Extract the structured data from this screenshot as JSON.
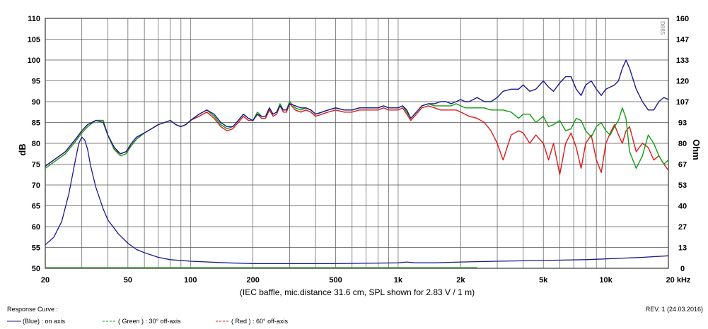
{
  "chart_data": {
    "type": "line",
    "title": "",
    "xlabel": "(IEC baffle, mic.distance 31.6 cm, SPL shown for 2.83 V / 1 m)",
    "ylabel": "dB",
    "ylabel_right": "Ohm",
    "x_scale": "log",
    "xlim": [
      20,
      20000
    ],
    "ylim": [
      50,
      110
    ],
    "ylim_right": [
      0,
      160
    ],
    "x_tick_labels": [
      "20",
      "50",
      "100",
      "200",
      "500",
      "1k",
      "2k",
      "5k",
      "10k",
      "20 kHz"
    ],
    "x_tick_values": [
      20,
      50,
      100,
      200,
      500,
      1000,
      2000,
      5000,
      10000,
      20000
    ],
    "y_tick_labels": [
      "50",
      "55",
      "60",
      "65",
      "70",
      "75",
      "80",
      "85",
      "90",
      "95",
      "100",
      "105",
      "110"
    ],
    "y_right_tick_labels": [
      "0",
      "13",
      "27",
      "40",
      "53",
      "67",
      "80",
      "93",
      "107",
      "120",
      "133",
      "147",
      "160"
    ],
    "grid": true,
    "legend_title": "Response Curve :",
    "legend_position": "bottom-left",
    "revision": "REV. 1 (24.03.2016)",
    "watermark": "D885",
    "series": [
      {
        "name": "(Blue) : on axis",
        "color": "#1a1a8c",
        "x": [
          20,
          22,
          25,
          28,
          30,
          32,
          35,
          38,
          40,
          43,
          46,
          49,
          52,
          55,
          60,
          65,
          70,
          75,
          80,
          85,
          90,
          95,
          100,
          110,
          120,
          130,
          140,
          150,
          160,
          170,
          180,
          190,
          200,
          210,
          220,
          230,
          240,
          250,
          260,
          270,
          280,
          290,
          300,
          320,
          340,
          360,
          380,
          400,
          430,
          460,
          500,
          550,
          600,
          650,
          700,
          750,
          800,
          850,
          900,
          950,
          1000,
          1050,
          1100,
          1150,
          1200,
          1300,
          1400,
          1500,
          1600,
          1700,
          1800,
          1900,
          2000,
          2100,
          2200,
          2400,
          2600,
          2800,
          3000,
          3200,
          3500,
          3800,
          4000,
          4300,
          4600,
          5000,
          5300,
          5600,
          6000,
          6400,
          6800,
          7200,
          7600,
          8000,
          8500,
          9000,
          9500,
          10000,
          10500,
          11000,
          11500,
          12000,
          12500,
          13000,
          14000,
          15000,
          16000,
          17000,
          18000,
          19000,
          20000
        ],
        "values": [
          74.5,
          76,
          78,
          81,
          83,
          84.5,
          85.5,
          85,
          82,
          79,
          77.5,
          78,
          80,
          81.5,
          82.5,
          83.5,
          84.5,
          85,
          85.5,
          84.5,
          84,
          84.5,
          85.5,
          87,
          88,
          87,
          85,
          84,
          84,
          85.5,
          87,
          86,
          85.5,
          87,
          86.5,
          86.5,
          88.5,
          87,
          87.5,
          89,
          88,
          88,
          89.5,
          89,
          88.5,
          88.5,
          88,
          87,
          87.5,
          88,
          88.5,
          88,
          88,
          88.5,
          88.5,
          88.5,
          88.5,
          89,
          88.5,
          88.5,
          88.5,
          89,
          88,
          86,
          87,
          89,
          89.5,
          89.5,
          90,
          90,
          89.5,
          90,
          90.5,
          90,
          90,
          91,
          90,
          90,
          91,
          92.5,
          93,
          93,
          94,
          92.5,
          93,
          95,
          93.5,
          92.5,
          94.5,
          96,
          96,
          93,
          91.5,
          94,
          95,
          93,
          91.5,
          93,
          93.5,
          94,
          95,
          98,
          100,
          98,
          93,
          90,
          88,
          88,
          90,
          91,
          90.5
        ],
        "impedance_x": [
          20,
          22,
          24,
          26,
          28,
          29,
          30,
          31,
          32,
          33,
          35,
          38,
          40,
          45,
          50,
          55,
          60,
          70,
          80,
          100,
          150,
          200,
          300,
          500,
          1000,
          1100,
          1200,
          1500,
          2000,
          3000,
          5000,
          8000,
          10000,
          15000,
          20000
        ],
        "impedance_ohm": [
          15,
          20,
          30,
          48,
          70,
          80,
          84,
          82,
          76,
          66,
          52,
          38,
          31,
          22,
          16,
          12,
          10,
          7,
          5.5,
          4.5,
          3.5,
          3,
          3,
          3,
          3.5,
          4,
          3.5,
          3.5,
          4,
          4.5,
          5,
          5.5,
          6,
          7,
          8
        ]
      },
      {
        "name": "( Green ) : 30° off-axis",
        "color": "#129c12",
        "x": [
          20,
          22,
          25,
          28,
          30,
          32,
          35,
          38,
          40,
          43,
          46,
          49,
          52,
          55,
          60,
          65,
          70,
          75,
          80,
          85,
          90,
          95,
          100,
          110,
          120,
          130,
          140,
          150,
          160,
          170,
          180,
          190,
          200,
          210,
          220,
          230,
          240,
          250,
          260,
          270,
          280,
          290,
          300,
          320,
          340,
          360,
          380,
          400,
          430,
          460,
          500,
          550,
          600,
          650,
          700,
          750,
          800,
          850,
          900,
          950,
          1000,
          1050,
          1100,
          1150,
          1200,
          1300,
          1400,
          1500,
          1600,
          1700,
          1800,
          1900,
          2000,
          2100,
          2200,
          2400,
          2600,
          2800,
          3000,
          3200,
          3500,
          3800,
          4000,
          4300,
          4600,
          5000,
          5300,
          5600,
          6000,
          6400,
          6800,
          7200,
          7600,
          8000,
          8500,
          9000,
          9500,
          10000,
          10500,
          11000,
          11500,
          12000,
          12500,
          13000,
          14000,
          15000,
          16000,
          17000,
          18000,
          19000,
          20000
        ],
        "values": [
          74,
          75.5,
          77.5,
          80.5,
          82.5,
          84,
          85.5,
          85.5,
          82,
          78.5,
          77,
          77.5,
          79.5,
          81,
          82.5,
          83.5,
          84.5,
          85,
          85.5,
          84.5,
          84,
          84.5,
          85.5,
          87,
          88,
          86.5,
          84.5,
          83.5,
          84,
          85.5,
          87,
          86,
          85.5,
          87.5,
          86.5,
          86.5,
          88.5,
          87,
          87.5,
          89.5,
          88,
          88,
          90,
          88.5,
          88,
          88.5,
          88,
          87,
          87.5,
          88,
          88.5,
          88,
          88,
          88.5,
          88.5,
          88.5,
          88.5,
          89,
          88.5,
          88.5,
          88.5,
          89,
          87.5,
          86,
          87,
          89,
          89.5,
          89,
          89,
          89,
          89,
          89.5,
          89,
          88.5,
          88.5,
          88.5,
          88.5,
          88,
          88,
          88,
          87.5,
          86,
          87,
          87,
          85,
          86.5,
          84,
          84.5,
          85.5,
          83,
          83.5,
          86,
          85.5,
          83,
          81.5,
          84,
          85,
          83,
          82,
          84,
          85.5,
          88.5,
          86,
          78,
          74,
          77,
          82,
          80,
          77,
          75,
          76
        ]
      },
      {
        "name": "( Red ) : 60° off-axis",
        "color": "#dd1a1a",
        "x": [
          20,
          22,
          25,
          28,
          30,
          32,
          35,
          38,
          40,
          43,
          46,
          49,
          52,
          55,
          60,
          65,
          70,
          75,
          80,
          85,
          90,
          95,
          100,
          110,
          120,
          130,
          140,
          150,
          160,
          170,
          180,
          190,
          200,
          210,
          220,
          230,
          240,
          250,
          260,
          270,
          280,
          290,
          300,
          320,
          340,
          360,
          380,
          400,
          430,
          460,
          500,
          550,
          600,
          650,
          700,
          750,
          800,
          850,
          900,
          950,
          1000,
          1050,
          1100,
          1150,
          1200,
          1300,
          1400,
          1500,
          1600,
          1700,
          1800,
          1900,
          2000,
          2100,
          2200,
          2400,
          2600,
          2800,
          3000,
          3200,
          3500,
          3800,
          4000,
          4300,
          4600,
          5000,
          5300,
          5600,
          6000,
          6400,
          6800,
          7200,
          7600,
          8000,
          8500,
          9000,
          9500,
          10000,
          10500,
          11000,
          11500,
          12000,
          12500,
          13000,
          14000,
          15000,
          16000,
          17000,
          18000,
          19000,
          20000
        ],
        "values": [
          74.5,
          76,
          78,
          81,
          83,
          84.5,
          85.5,
          85.5,
          82,
          78.5,
          77.5,
          78,
          79.5,
          81,
          82.5,
          83.5,
          84.5,
          85,
          85.5,
          84.5,
          84,
          84.5,
          85.5,
          86.5,
          87.5,
          86,
          84,
          83,
          83.5,
          85,
          86.5,
          85.5,
          85.5,
          87,
          86,
          86,
          88,
          86.5,
          87,
          89,
          87.5,
          87.5,
          89.5,
          88,
          87.5,
          88,
          87.5,
          86.5,
          87,
          87.5,
          88,
          87.5,
          87.5,
          88,
          88,
          88,
          88,
          88.5,
          88,
          88,
          88,
          88.5,
          87,
          85.5,
          86.5,
          88.5,
          89,
          88.5,
          88,
          88,
          88,
          88,
          87.5,
          87,
          86.5,
          86,
          85,
          83,
          80,
          76,
          82,
          83,
          82.5,
          80,
          82,
          80,
          76,
          80,
          72.5,
          80,
          82.5,
          79,
          74,
          80,
          82,
          76,
          73,
          80,
          82.5,
          84.5,
          82,
          80,
          83,
          84,
          78,
          80,
          79,
          76,
          77,
          75,
          73.5
        ]
      }
    ]
  }
}
